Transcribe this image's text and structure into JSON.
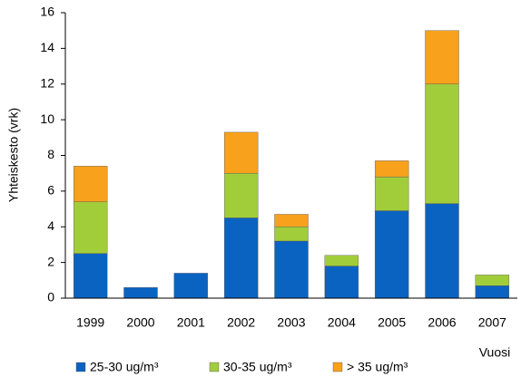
{
  "chart_data": {
    "type": "stacked_bar",
    "y_label": "Yhteiskesto (vrk)",
    "x_label": "Vuosi",
    "categories": [
      "1999",
      "2000",
      "2001",
      "2002",
      "2003",
      "2004",
      "2005",
      "2006",
      "2007"
    ],
    "series": [
      {
        "name": "25-30 ug/m³",
        "color": "#0b63c1",
        "values": [
          2.5,
          0.6,
          1.4,
          4.5,
          3.2,
          1.8,
          4.9,
          5.3,
          0.7
        ]
      },
      {
        "name": "30-35 ug/m³",
        "color": "#a2cd3a",
        "values": [
          2.9,
          0,
          0,
          2.5,
          0.8,
          0.6,
          1.9,
          6.7,
          0.6
        ]
      },
      {
        "name": "> 35 ug/m³",
        "color": "#f7a11c",
        "values": [
          2.0,
          0,
          0,
          2.3,
          0.7,
          0,
          0.9,
          3.0,
          0
        ]
      }
    ],
    "ylim": [
      0,
      16
    ],
    "yticks": [
      0,
      2,
      4,
      6,
      8,
      10,
      12,
      14,
      16
    ],
    "grid": false
  }
}
